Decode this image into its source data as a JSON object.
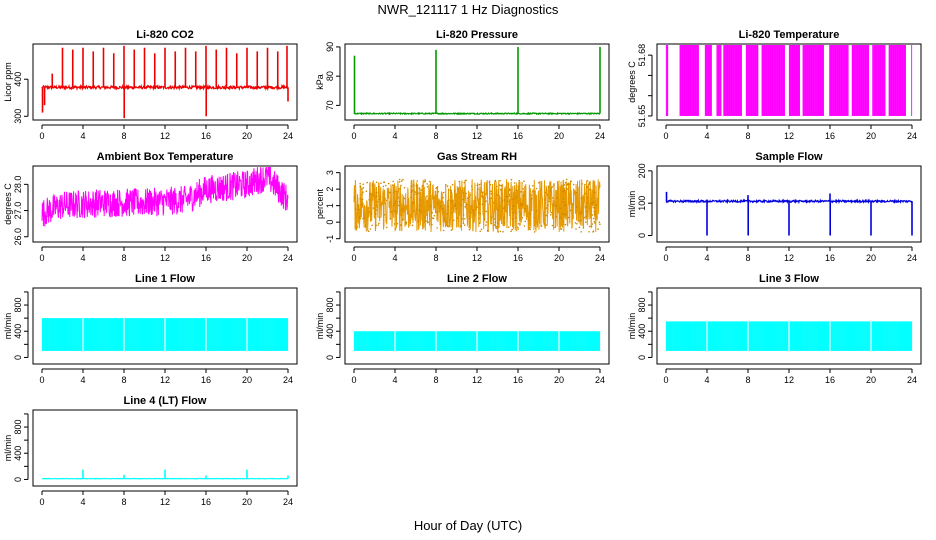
{
  "figure": {
    "title": "NWR_121117  1 Hz Diagnostics",
    "xlabel": "Hour of Day (UTC)"
  },
  "chart_data": [
    {
      "id": "licor-co2",
      "type": "line",
      "title": "Li-820 CO2",
      "ylabel": "Licor ppm",
      "color": "#ee0000",
      "xlim": [
        0,
        24
      ],
      "xticks": [
        0,
        4,
        8,
        12,
        16,
        20,
        24
      ],
      "ylim": [
        290,
        495
      ],
      "yticks": [
        300,
        400
      ],
      "ytick_labels": [
        "300",
        "400"
      ],
      "baseline": 378,
      "noise": 4,
      "spikes": [
        [
          0.05,
          310
        ],
        [
          0.25,
          330
        ],
        [
          1.0,
          415
        ],
        [
          2.0,
          485
        ],
        [
          3.0,
          480
        ],
        [
          4.0,
          485
        ],
        [
          5.0,
          475
        ],
        [
          6.0,
          485
        ],
        [
          7.0,
          470
        ],
        [
          8.0,
          490
        ],
        [
          8.02,
          295
        ],
        [
          9.0,
          480
        ],
        [
          10.0,
          485
        ],
        [
          11.0,
          470
        ],
        [
          12.0,
          485
        ],
        [
          13.0,
          475
        ],
        [
          14.0,
          485
        ],
        [
          15.0,
          475
        ],
        [
          16.0,
          490
        ],
        [
          16.02,
          300
        ],
        [
          17.0,
          480
        ],
        [
          18.0,
          485
        ],
        [
          19.0,
          470
        ],
        [
          20.0,
          485
        ],
        [
          21.0,
          475
        ],
        [
          22.0,
          485
        ],
        [
          23.0,
          475
        ],
        [
          23.9,
          490
        ],
        [
          24.0,
          340
        ]
      ]
    },
    {
      "id": "licor-pressure",
      "type": "line",
      "title": "Li-820 Pressure",
      "ylabel": "kPa",
      "color": "#009900",
      "xlim": [
        0,
        24
      ],
      "xticks": [
        0,
        4,
        8,
        12,
        16,
        20,
        24
      ],
      "ylim": [
        65,
        91
      ],
      "yticks": [
        70,
        80,
        90
      ],
      "ytick_labels": [
        "70",
        "80",
        "90"
      ],
      "baseline": 67.2,
      "noise": 0.2,
      "spikes": [
        [
          0.05,
          87
        ],
        [
          8.0,
          89
        ],
        [
          16.0,
          90
        ],
        [
          24.0,
          90
        ]
      ]
    },
    {
      "id": "licor-temperature",
      "type": "band",
      "title": "Li-820 Temperature",
      "ylabel": "degrees C",
      "color": "#ff00ff",
      "xlim": [
        0,
        24
      ],
      "xticks": [
        0,
        4,
        8,
        12,
        16,
        20,
        24
      ],
      "ylim": [
        51.648,
        51.6855
      ],
      "yticks": [
        51.65,
        51.66,
        51.67,
        51.68
      ],
      "ytick_labels": [
        "51.65",
        "",
        "",
        "51.68"
      ],
      "band": [
        51.65,
        51.685
      ],
      "gaps": [
        [
          0.2,
          1.3
        ],
        [
          3.2,
          3.8
        ],
        [
          4.5,
          4.9
        ],
        [
          5.4,
          5.6
        ],
        [
          7.4,
          7.8
        ],
        [
          9.0,
          9.3
        ],
        [
          11.6,
          12.0
        ],
        [
          13.1,
          13.3
        ],
        [
          15.4,
          15.9
        ],
        [
          17.8,
          18.1
        ],
        [
          19.8,
          20.1
        ],
        [
          21.4,
          21.7
        ],
        [
          23.4,
          23.9
        ]
      ]
    },
    {
      "id": "ambient-box-temperature",
      "type": "noise",
      "title": "Ambient Box Temperature",
      "ylabel": "degrees C",
      "color": "#ff00ff",
      "xlim": [
        0,
        24
      ],
      "xticks": [
        0,
        4,
        8,
        12,
        16,
        20,
        24
      ],
      "ylim": [
        25.8,
        28.7
      ],
      "yticks": [
        26.0,
        27.0,
        28.0
      ],
      "ytick_labels": [
        "26.0",
        "27.0",
        "28.0"
      ],
      "trend": [
        [
          0,
          26.9
        ],
        [
          2,
          27.2
        ],
        [
          6,
          27.3
        ],
        [
          10,
          27.3
        ],
        [
          14,
          27.4
        ],
        [
          16,
          27.8
        ],
        [
          20,
          28.0
        ],
        [
          22,
          28.3
        ],
        [
          24,
          27.4
        ]
      ],
      "amp": 0.55
    },
    {
      "id": "gas-stream-rh",
      "type": "noise",
      "title": "Gas Stream RH",
      "ylabel": "percent",
      "color": "#e69900",
      "xlim": [
        0,
        24
      ],
      "xticks": [
        0,
        4,
        8,
        12,
        16,
        20,
        24
      ],
      "ylim": [
        -1.2,
        3.4
      ],
      "yticks": [
        -1,
        0,
        1,
        2,
        3
      ],
      "ytick_labels": [
        "-1",
        "0",
        "1",
        "2",
        "3"
      ],
      "trend": [
        [
          0,
          1.0
        ],
        [
          12,
          1.0
        ],
        [
          24,
          1.0
        ]
      ],
      "amp": 1.6,
      "pointy": true
    },
    {
      "id": "sample-flow",
      "type": "line",
      "title": "Sample Flow",
      "ylabel": "ml/min",
      "color": "#0000dd",
      "xlim": [
        0,
        24
      ],
      "xticks": [
        0,
        4,
        8,
        12,
        16,
        20,
        24
      ],
      "ylim": [
        -20,
        215
      ],
      "yticks": [
        0,
        100,
        200
      ],
      "ytick_labels": [
        "0",
        "100",
        "200"
      ],
      "baseline": 106,
      "noise": 3,
      "spikes": [
        [
          0.05,
          135
        ],
        [
          4.0,
          0
        ],
        [
          8.0,
          125
        ],
        [
          8.02,
          0
        ],
        [
          12.0,
          0
        ],
        [
          16.0,
          130
        ],
        [
          16.02,
          0
        ],
        [
          20.0,
          0
        ],
        [
          24.0,
          0
        ]
      ]
    },
    {
      "id": "line-1-flow",
      "type": "band",
      "title": "Line 1 Flow",
      "ylabel": "ml/min",
      "color": "#00ffff",
      "xlim": [
        0,
        24
      ],
      "xticks": [
        0,
        4,
        8,
        12,
        16,
        20,
        24
      ],
      "ylim": [
        -100,
        1060
      ],
      "yticks": [
        0,
        200,
        400,
        600,
        800,
        1000
      ],
      "ytick_labels": [
        "0",
        "",
        "400",
        "",
        "800",
        ""
      ],
      "band": [
        100,
        600
      ],
      "gaps": [
        [
          3.95,
          4.05
        ],
        [
          7.95,
          8.05
        ],
        [
          11.95,
          12.05
        ],
        [
          15.95,
          16.05
        ],
        [
          19.95,
          20.05
        ]
      ]
    },
    {
      "id": "line-2-flow",
      "type": "band",
      "title": "Line 2 Flow",
      "ylabel": "ml/min",
      "color": "#00ffff",
      "xlim": [
        0,
        24
      ],
      "xticks": [
        0,
        4,
        8,
        12,
        16,
        20,
        24
      ],
      "ylim": [
        -100,
        1060
      ],
      "yticks": [
        0,
        200,
        400,
        600,
        800,
        1000
      ],
      "ytick_labels": [
        "0",
        "",
        "400",
        "",
        "800",
        ""
      ],
      "band": [
        100,
        400
      ],
      "gaps": [
        [
          3.95,
          4.05
        ],
        [
          7.95,
          8.05
        ],
        [
          11.95,
          12.05
        ],
        [
          15.95,
          16.05
        ],
        [
          19.95,
          20.05
        ]
      ]
    },
    {
      "id": "line-3-flow",
      "type": "band",
      "title": "Line 3 Flow",
      "ylabel": "ml/min",
      "color": "#00ffff",
      "xlim": [
        0,
        24
      ],
      "xticks": [
        0,
        4,
        8,
        12,
        16,
        20,
        24
      ],
      "ylim": [
        -100,
        1060
      ],
      "yticks": [
        0,
        200,
        400,
        600,
        800,
        1000
      ],
      "ytick_labels": [
        "0",
        "",
        "400",
        "",
        "800",
        ""
      ],
      "band": [
        100,
        550
      ],
      "gaps": [
        [
          3.95,
          4.05
        ],
        [
          7.95,
          8.05
        ],
        [
          11.95,
          12.05
        ],
        [
          15.95,
          16.05
        ],
        [
          19.95,
          20.05
        ]
      ]
    },
    {
      "id": "line-4-lt-flow",
      "type": "line",
      "title": "Line 4 (LT) Flow",
      "ylabel": "ml/min",
      "color": "#00ffff",
      "xlim": [
        0,
        24
      ],
      "xticks": [
        0,
        4,
        8,
        12,
        16,
        20,
        24
      ],
      "ylim": [
        -100,
        1060
      ],
      "yticks": [
        0,
        200,
        400,
        600,
        800,
        1000
      ],
      "ytick_labels": [
        "0",
        "",
        "400",
        "",
        "800",
        ""
      ],
      "baseline": 12,
      "noise": 3,
      "spikes": [
        [
          4.0,
          150
        ],
        [
          8.0,
          70
        ],
        [
          12.0,
          150
        ],
        [
          16.0,
          60
        ],
        [
          20.0,
          150
        ],
        [
          24.0,
          60
        ]
      ]
    }
  ]
}
